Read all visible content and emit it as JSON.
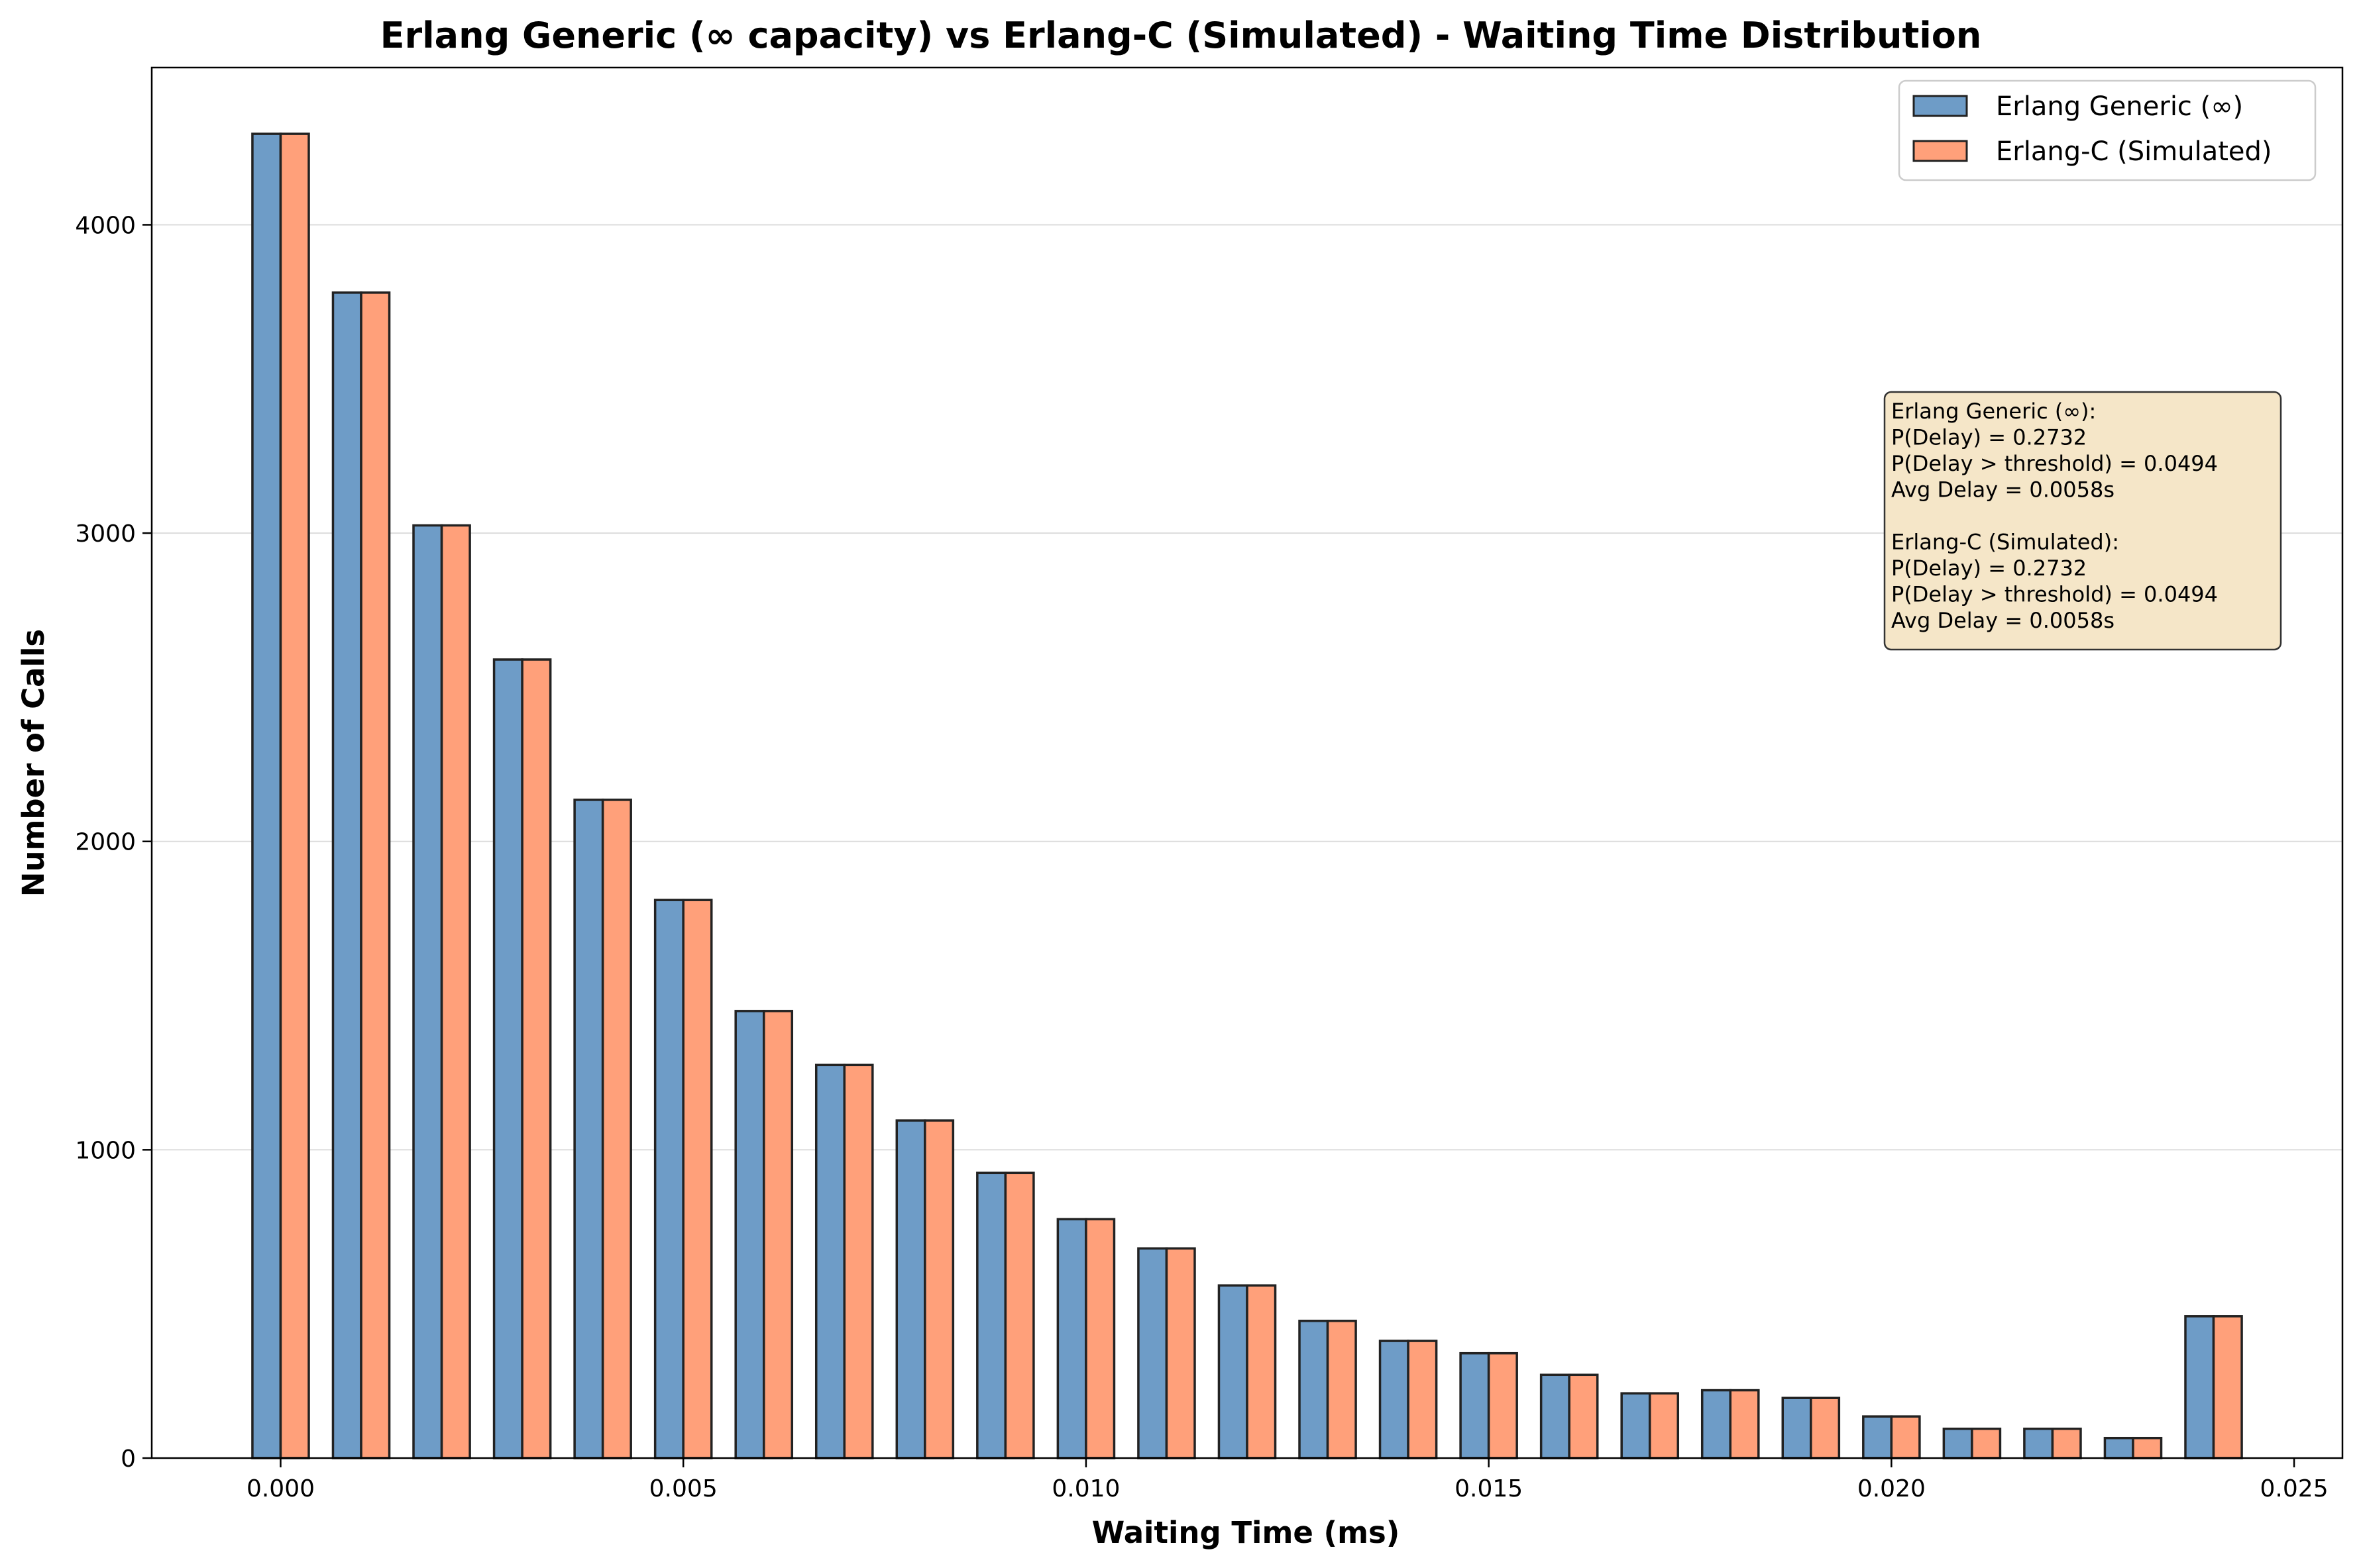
{
  "chart_data": {
    "type": "bar",
    "title": "Erlang Generic (∞ capacity) vs Erlang-C (Simulated) - Waiting Time Distribution",
    "xlabel": "Waiting Time (ms)",
    "ylabel": "Number of Calls",
    "xlim": [
      -0.0016,
      0.0256
    ],
    "ylim": [
      0,
      4510
    ],
    "xticks": [
      0.0,
      0.005,
      0.01,
      0.015,
      0.02,
      0.025
    ],
    "xtick_labels": [
      "0.000",
      "0.005",
      "0.010",
      "0.015",
      "0.020",
      "0.025"
    ],
    "yticks": [
      0,
      1000,
      2000,
      3000,
      4000
    ],
    "ytick_labels": [
      "0",
      "1000",
      "2000",
      "3000",
      "4000"
    ],
    "grid": "y",
    "bin_width": 0.001,
    "x": [
      0.0,
      0.001,
      0.002,
      0.003,
      0.004,
      0.005,
      0.006,
      0.007,
      0.008,
      0.009,
      0.01,
      0.011,
      0.012,
      0.013,
      0.014,
      0.015,
      0.016,
      0.017,
      0.018,
      0.019,
      0.02,
      0.021,
      0.022,
      0.023,
      0.024
    ],
    "series": [
      {
        "name": "Erlang Generic (∞)",
        "color": "#6e9cc7",
        "values": [
          4295,
          3780,
          3025,
          2590,
          2135,
          1810,
          1450,
          1275,
          1095,
          925,
          775,
          680,
          560,
          445,
          380,
          340,
          270,
          210,
          220,
          195,
          135,
          95,
          95,
          65,
          460
        ]
      },
      {
        "name": "Erlang-C (Simulated)",
        "color": "#ffa07a",
        "values": [
          4295,
          3780,
          3025,
          2590,
          2135,
          1810,
          1450,
          1275,
          1095,
          925,
          775,
          680,
          560,
          445,
          380,
          340,
          270,
          210,
          220,
          195,
          135,
          95,
          95,
          65,
          460
        ]
      }
    ],
    "legend": {
      "placement": "top-right",
      "entries": [
        "Erlang Generic (∞)",
        "Erlang-C (Simulated)"
      ]
    },
    "annotation": {
      "placement": "right",
      "background": "#f5e6c8",
      "lines": [
        "Erlang Generic (∞):",
        "P(Delay) = 0.2732",
        "P(Delay > threshold) = 0.0494",
        "Avg Delay = 0.0058s",
        "",
        "Erlang-C (Simulated):",
        "P(Delay) = 0.2732",
        "P(Delay > threshold) = 0.0494",
        "Avg Delay = 0.0058s"
      ]
    }
  }
}
